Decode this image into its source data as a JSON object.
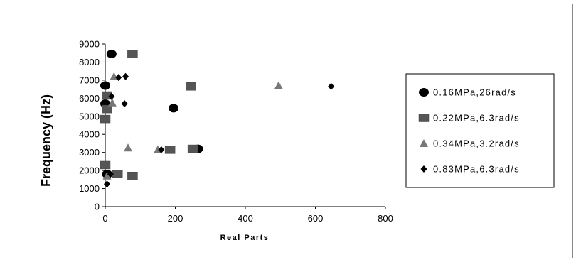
{
  "chart_data": {
    "type": "scatter",
    "title": "",
    "xlabel": "Real Parts",
    "ylabel": "Frequency (Hz)",
    "xlim": [
      0,
      800
    ],
    "ylim": [
      0,
      9000
    ],
    "xticks": [
      0,
      200,
      400,
      600,
      800
    ],
    "yticks": [
      0,
      1000,
      2000,
      3000,
      4000,
      5000,
      6000,
      7000,
      8000,
      9000
    ],
    "grid": false,
    "legend_position": "right",
    "series": [
      {
        "name": "0.16MPa,26rad/s",
        "marker": "circle",
        "color": "#000000",
        "points": [
          [
            18,
            8450
          ],
          [
            0,
            6700
          ],
          [
            0,
            5700
          ],
          [
            195,
            5450
          ],
          [
            265,
            3200
          ],
          [
            5,
            1800
          ]
        ]
      },
      {
        "name": "0.22MPa,6.3rad/s",
        "marker": "square",
        "color": "#555555",
        "points": [
          [
            78,
            8450
          ],
          [
            245,
            6650
          ],
          [
            5,
            6150
          ],
          [
            5,
            5400
          ],
          [
            0,
            4850
          ],
          [
            250,
            3200
          ],
          [
            185,
            3150
          ],
          [
            0,
            2300
          ],
          [
            35,
            1800
          ],
          [
            78,
            1700
          ]
        ]
      },
      {
        "name": "0.34MPa,3.2rad/s",
        "marker": "triangle",
        "color": "#777777",
        "points": [
          [
            25,
            7200
          ],
          [
            495,
            6700
          ],
          [
            20,
            5750
          ],
          [
            65,
            3250
          ],
          [
            150,
            3150
          ],
          [
            5,
            1700
          ]
        ]
      },
      {
        "name": "0.83MPa,6.3rad/s",
        "marker": "diamond",
        "color": "#000000",
        "points": [
          [
            58,
            7200
          ],
          [
            38,
            7150
          ],
          [
            18,
            6100
          ],
          [
            55,
            5700
          ],
          [
            645,
            6650
          ],
          [
            160,
            3150
          ],
          [
            15,
            1800
          ],
          [
            5,
            1250
          ]
        ]
      }
    ]
  }
}
